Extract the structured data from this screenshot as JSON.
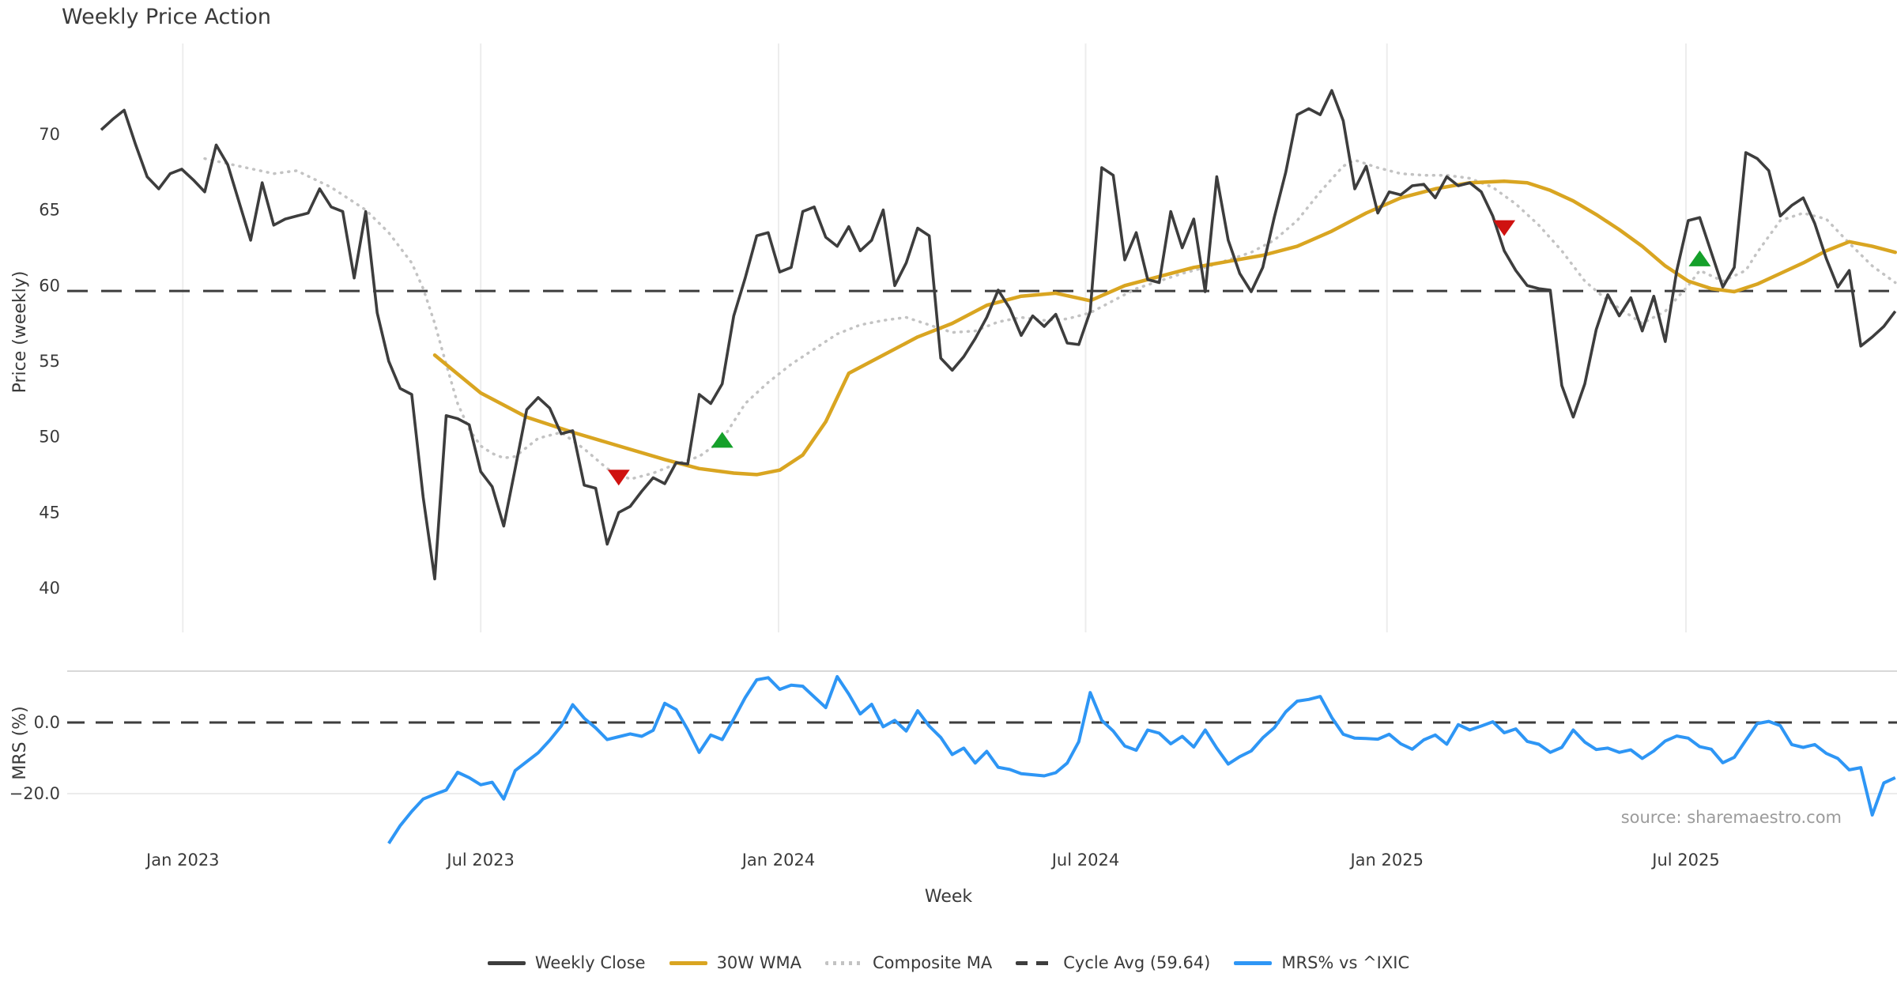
{
  "title": "Weekly Price Action",
  "xlabel": "Week",
  "source_note": "source: sharemaestro.com",
  "legend": [
    {
      "label": "Weekly Close",
      "swatch": "solid-dark"
    },
    {
      "label": "30W WMA",
      "swatch": "solid-gold"
    },
    {
      "label": "Composite MA",
      "swatch": "dotted-gray"
    },
    {
      "label": "Cycle Avg (59.64)",
      "swatch": "dashed-dark"
    },
    {
      "label": "MRS% vs ^IXIC",
      "swatch": "solid-blue"
    }
  ],
  "colors": {
    "close": "#3d3d3d",
    "wma": "#d9a521",
    "composite": "#c3c3c3",
    "cycle": "#3d3d3d",
    "mrs": "#2e96f5",
    "sell_marker": "#cf1210",
    "buy_marker": "#15a02a",
    "grid": "#ededed",
    "panel_border": "#d8d8d8",
    "tick_text": "#3a3a3a",
    "source_text": "#9b9b9b"
  },
  "chart_data": {
    "type": "line",
    "panels": [
      {
        "name": "price",
        "ylabel": "Price (weekly)",
        "yticks": [
          70,
          65,
          60,
          55,
          50,
          45,
          40
        ],
        "ylim": [
          38,
          74.5
        ]
      },
      {
        "name": "mrs",
        "ylabel": "MRS (%)",
        "yticks": [
          {
            "v": 0,
            "label": "0.0"
          },
          {
            "v": -20,
            "label": "−20.0"
          }
        ],
        "ylim": [
          -36,
          15
        ]
      }
    ],
    "x_ticks": [
      {
        "week": 7.1,
        "label": "Jan 2023"
      },
      {
        "week": 33.0,
        "label": "Jul 2023"
      },
      {
        "week": 58.9,
        "label": "Jan 2024"
      },
      {
        "week": 85.6,
        "label": "Jul 2024"
      },
      {
        "week": 111.8,
        "label": "Jan 2025"
      },
      {
        "week": 137.8,
        "label": "Jul 2025"
      }
    ],
    "cycle_avg": 59.64,
    "weekly_close": {
      "start_week": 0,
      "values": [
        70.3,
        71.0,
        71.6,
        69.3,
        67.2,
        66.4,
        67.4,
        67.7,
        67.0,
        66.2,
        69.3,
        68.0,
        65.5,
        63.0,
        66.8,
        64.0,
        64.4,
        64.6,
        64.8,
        66.4,
        65.2,
        64.9,
        60.5,
        64.9,
        58.2,
        55.0,
        53.2,
        52.8,
        46.0,
        40.6,
        51.4,
        51.2,
        50.8,
        47.7,
        46.7,
        44.1,
        47.9,
        51.8,
        52.6,
        51.9,
        50.2,
        50.4,
        46.8,
        46.6,
        42.9,
        45.0,
        45.4,
        46.4,
        47.3,
        46.9,
        48.3,
        48.2,
        52.8,
        52.2,
        53.5,
        58.0,
        60.5,
        63.3,
        63.5,
        60.9,
        61.2,
        64.9,
        65.2,
        63.2,
        62.6,
        63.9,
        62.3,
        63.0,
        65.0,
        60.0,
        61.5,
        63.8,
        63.3,
        55.2,
        54.4,
        55.3,
        56.5,
        57.9,
        59.7,
        58.5,
        56.7,
        58.0,
        57.3,
        58.1,
        56.2,
        56.1,
        58.3,
        67.8,
        67.3,
        61.7,
        63.5,
        60.4,
        60.2,
        64.9,
        62.5,
        64.4,
        59.6,
        67.2,
        63.0,
        60.8,
        59.6,
        61.2,
        64.5,
        67.5,
        71.3,
        71.7,
        71.3,
        72.9,
        70.9,
        66.4,
        67.9,
        64.8,
        66.2,
        66.0,
        66.6,
        66.7,
        65.8,
        67.2,
        66.6,
        66.8,
        66.2,
        64.6,
        62.3,
        61.0,
        60.0,
        59.8,
        59.7,
        53.4,
        51.3,
        53.5,
        57.1,
        59.4,
        58.0,
        59.2,
        57.0,
        59.3,
        56.3,
        61.0,
        64.3,
        64.5,
        62.2,
        59.9,
        61.2,
        68.8,
        68.4,
        67.6,
        64.6,
        65.3,
        65.8,
        64.1,
        61.8,
        59.9,
        61.0,
        56.0,
        56.6,
        57.3,
        58.3
      ]
    },
    "wma_30w": {
      "anchors": [
        [
          29,
          55.4
        ],
        [
          33,
          52.9
        ],
        [
          37,
          51.3
        ],
        [
          41,
          50.3
        ],
        [
          45,
          49.4
        ],
        [
          49,
          48.5
        ],
        [
          52,
          47.9
        ],
        [
          55,
          47.6
        ],
        [
          57,
          47.5
        ],
        [
          59,
          47.8
        ],
        [
          61,
          48.8
        ],
        [
          63,
          51.0
        ],
        [
          65,
          54.2
        ],
        [
          68,
          55.4
        ],
        [
          71,
          56.6
        ],
        [
          74,
          57.5
        ],
        [
          77,
          58.7
        ],
        [
          80,
          59.3
        ],
        [
          83,
          59.5
        ],
        [
          86,
          59.0
        ],
        [
          89,
          60.0
        ],
        [
          92,
          60.6
        ],
        [
          95,
          61.2
        ],
        [
          98,
          61.6
        ],
        [
          101,
          62.0
        ],
        [
          104,
          62.6
        ],
        [
          107,
          63.6
        ],
        [
          110,
          64.8
        ],
        [
          113,
          65.8
        ],
        [
          116,
          66.4
        ],
        [
          119,
          66.8
        ],
        [
          122,
          66.9
        ],
        [
          124,
          66.8
        ],
        [
          126,
          66.3
        ],
        [
          128,
          65.6
        ],
        [
          130,
          64.7
        ],
        [
          132,
          63.7
        ],
        [
          134,
          62.6
        ],
        [
          136,
          61.3
        ],
        [
          138,
          60.3
        ],
        [
          140,
          59.8
        ],
        [
          142,
          59.6
        ],
        [
          144,
          60.1
        ],
        [
          146,
          60.8
        ],
        [
          148,
          61.5
        ],
        [
          150,
          62.3
        ],
        [
          152,
          62.9
        ],
        [
          154,
          62.6
        ],
        [
          156,
          62.2
        ]
      ]
    },
    "composite_ma": {
      "anchors": [
        [
          9,
          68.4
        ],
        [
          12,
          67.9
        ],
        [
          15,
          67.4
        ],
        [
          17,
          67.6
        ],
        [
          20,
          66.5
        ],
        [
          23,
          65.0
        ],
        [
          25,
          63.5
        ],
        [
          27,
          61.5
        ],
        [
          28,
          59.8
        ],
        [
          29,
          57.5
        ],
        [
          30,
          54.8
        ],
        [
          31,
          52.2
        ],
        [
          32,
          50.5
        ],
        [
          33,
          49.4
        ],
        [
          34,
          48.9
        ],
        [
          35,
          48.6
        ],
        [
          36,
          48.7
        ],
        [
          37,
          49.3
        ],
        [
          38,
          49.9
        ],
        [
          40,
          50.3
        ],
        [
          42,
          49.2
        ],
        [
          44,
          47.9
        ],
        [
          46,
          47.2
        ],
        [
          48,
          47.6
        ],
        [
          50,
          48.2
        ],
        [
          52,
          48.7
        ],
        [
          54,
          49.8
        ],
        [
          56,
          52.2
        ],
        [
          58,
          53.6
        ],
        [
          60,
          54.8
        ],
        [
          62,
          55.8
        ],
        [
          64,
          56.8
        ],
        [
          66,
          57.4
        ],
        [
          68,
          57.7
        ],
        [
          70,
          57.9
        ],
        [
          72,
          57.4
        ],
        [
          74,
          56.9
        ],
        [
          76,
          57.0
        ],
        [
          78,
          57.6
        ],
        [
          80,
          57.9
        ],
        [
          82,
          57.7
        ],
        [
          84,
          57.8
        ],
        [
          86,
          58.2
        ],
        [
          88,
          59.0
        ],
        [
          90,
          59.8
        ],
        [
          92,
          60.3
        ],
        [
          94,
          60.8
        ],
        [
          96,
          61.2
        ],
        [
          98,
          61.7
        ],
        [
          100,
          62.2
        ],
        [
          102,
          63.0
        ],
        [
          104,
          64.3
        ],
        [
          106,
          66.2
        ],
        [
          108,
          67.9
        ],
        [
          109,
          68.3
        ],
        [
          111,
          67.8
        ],
        [
          113,
          67.4
        ],
        [
          115,
          67.3
        ],
        [
          117,
          67.3
        ],
        [
          119,
          67.1
        ],
        [
          121,
          66.5
        ],
        [
          123,
          65.4
        ],
        [
          125,
          64.0
        ],
        [
          127,
          62.3
        ],
        [
          129,
          60.3
        ],
        [
          131,
          59.0
        ],
        [
          133,
          58.0
        ],
        [
          134,
          57.5
        ],
        [
          136,
          58.3
        ],
        [
          138,
          60.0
        ],
        [
          139,
          61.0
        ],
        [
          141,
          60.3
        ],
        [
          143,
          61.0
        ],
        [
          144,
          62.2
        ],
        [
          146,
          64.3
        ],
        [
          148,
          64.8
        ],
        [
          150,
          64.4
        ],
        [
          152,
          62.8
        ],
        [
          154,
          61.3
        ],
        [
          156,
          60.2
        ]
      ]
    },
    "mrs_pct": {
      "start_week": 25,
      "values": [
        -34.0,
        -29.0,
        -25.0,
        -21.5,
        -20.2,
        -19.0,
        -14.0,
        -15.5,
        -17.5,
        -16.8,
        -21.5,
        -13.5,
        -11.0,
        -8.5,
        -5.0,
        -1.0,
        5.0,
        1.2,
        -1.5,
        -4.8,
        -4.0,
        -3.2,
        -3.9,
        -2.2,
        5.4,
        3.6,
        -2.0,
        -8.4,
        -3.5,
        -4.8,
        1.0,
        7.0,
        12.0,
        12.6,
        9.3,
        10.5,
        10.2,
        7.2,
        4.2,
        12.9,
        8.0,
        2.4,
        5.1,
        -1.2,
        0.6,
        -2.4,
        3.3,
        -1.0,
        -4.2,
        -9.0,
        -7.2,
        -11.4,
        -8.1,
        -12.6,
        -13.2,
        -14.4,
        -14.7,
        -15.0,
        -14.1,
        -11.4,
        -5.4,
        8.4,
        0.6,
        -2.4,
        -6.6,
        -7.8,
        -2.1,
        -3.0,
        -6.0,
        -3.9,
        -6.9,
        -2.1,
        -7.2,
        -11.7,
        -9.6,
        -8.0,
        -4.3,
        -1.5,
        3.0,
        6.0,
        6.5,
        7.3,
        1.4,
        -3.3,
        -4.4,
        -4.5,
        -4.7,
        -3.3,
        -6.0,
        -7.5,
        -4.9,
        -3.5,
        -6.1,
        -0.6,
        -2.1,
        -1.0,
        0.2,
        -2.9,
        -1.8,
        -5.3,
        -6.1,
        -8.4,
        -7.0,
        -2.1,
        -5.5,
        -7.6,
        -7.2,
        -8.4,
        -7.7,
        -10.1,
        -8.0,
        -5.2,
        -3.8,
        -4.4,
        -6.8,
        -7.5,
        -11.3,
        -9.8,
        -5.0,
        -0.3,
        0.3,
        -0.9,
        -6.2,
        -7.0,
        -6.2,
        -8.7,
        -10.1,
        -13.3,
        -12.7,
        -26.0,
        -17.0,
        -15.5
      ]
    },
    "signal_markers": [
      {
        "week": 45,
        "value": 47.3,
        "type": "sell"
      },
      {
        "week": 54,
        "value": 49.8,
        "type": "buy"
      },
      {
        "week": 122,
        "value": 63.8,
        "type": "sell"
      },
      {
        "week": 139,
        "value": 61.8,
        "type": "buy"
      }
    ]
  }
}
